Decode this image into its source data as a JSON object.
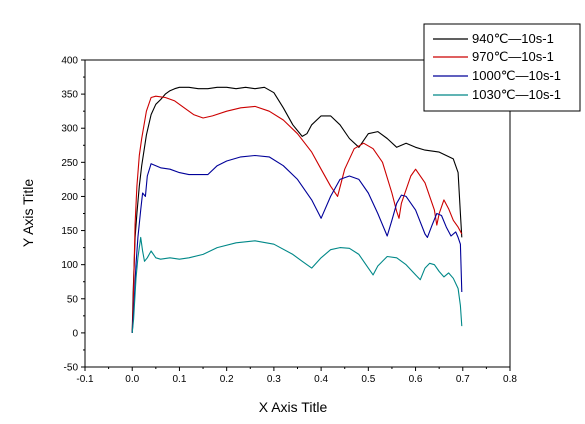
{
  "chart_data": {
    "type": "line",
    "xlabel": "X Axis Title",
    "ylabel": "Y Axis Title",
    "xlim": [
      -0.1,
      0.8
    ],
    "ylim": [
      -50,
      400
    ],
    "xticks": [
      -0.1,
      0.0,
      0.1,
      0.2,
      0.3,
      0.4,
      0.5,
      0.6,
      0.7,
      0.8
    ],
    "xtick_labels": [
      "-0.1",
      "0.0",
      "0.1",
      "0.2",
      "0.3",
      "0.4",
      "0.5",
      "0.6",
      "0.7",
      "0.8"
    ],
    "yticks": [
      -50,
      0,
      50,
      100,
      150,
      200,
      250,
      300,
      350,
      400
    ],
    "ytick_labels": [
      "-50",
      "0",
      "50",
      "100",
      "150",
      "200",
      "250",
      "300",
      "350",
      "400"
    ],
    "grid": false,
    "legend_position": "top-right",
    "series": [
      {
        "name": "940℃—10s-1",
        "color": "#000000",
        "points": [
          [
            0.0,
            0
          ],
          [
            0.002,
            60
          ],
          [
            0.006,
            140
          ],
          [
            0.01,
            175
          ],
          [
            0.015,
            215
          ],
          [
            0.02,
            245
          ],
          [
            0.03,
            290
          ],
          [
            0.04,
            320
          ],
          [
            0.05,
            335
          ],
          [
            0.06,
            342
          ],
          [
            0.07,
            350
          ],
          [
            0.08,
            355
          ],
          [
            0.09,
            358
          ],
          [
            0.1,
            360
          ],
          [
            0.12,
            360
          ],
          [
            0.14,
            358
          ],
          [
            0.16,
            358
          ],
          [
            0.18,
            360
          ],
          [
            0.2,
            360
          ],
          [
            0.22,
            358
          ],
          [
            0.24,
            360
          ],
          [
            0.26,
            358
          ],
          [
            0.28,
            360
          ],
          [
            0.3,
            352
          ],
          [
            0.32,
            330
          ],
          [
            0.34,
            305
          ],
          [
            0.36,
            288
          ],
          [
            0.37,
            292
          ],
          [
            0.38,
            305
          ],
          [
            0.4,
            318
          ],
          [
            0.42,
            318
          ],
          [
            0.44,
            305
          ],
          [
            0.46,
            285
          ],
          [
            0.48,
            272
          ],
          [
            0.5,
            292
          ],
          [
            0.52,
            295
          ],
          [
            0.54,
            285
          ],
          [
            0.56,
            272
          ],
          [
            0.58,
            278
          ],
          [
            0.6,
            272
          ],
          [
            0.62,
            268
          ],
          [
            0.65,
            265
          ],
          [
            0.68,
            255
          ],
          [
            0.69,
            235
          ],
          [
            0.695,
            175
          ],
          [
            0.698,
            140
          ]
        ]
      },
      {
        "name": "970℃—10s-1",
        "color": "#cc0000",
        "points": [
          [
            0.0,
            0
          ],
          [
            0.002,
            40
          ],
          [
            0.006,
            160
          ],
          [
            0.01,
            215
          ],
          [
            0.015,
            260
          ],
          [
            0.02,
            285
          ],
          [
            0.03,
            325
          ],
          [
            0.04,
            345
          ],
          [
            0.05,
            347
          ],
          [
            0.07,
            345
          ],
          [
            0.09,
            340
          ],
          [
            0.11,
            330
          ],
          [
            0.13,
            320
          ],
          [
            0.15,
            315
          ],
          [
            0.17,
            318
          ],
          [
            0.2,
            325
          ],
          [
            0.23,
            330
          ],
          [
            0.26,
            332
          ],
          [
            0.29,
            325
          ],
          [
            0.32,
            312
          ],
          [
            0.35,
            292
          ],
          [
            0.38,
            265
          ],
          [
            0.4,
            240
          ],
          [
            0.42,
            215
          ],
          [
            0.435,
            200
          ],
          [
            0.45,
            240
          ],
          [
            0.47,
            270
          ],
          [
            0.49,
            278
          ],
          [
            0.51,
            270
          ],
          [
            0.53,
            250
          ],
          [
            0.55,
            205
          ],
          [
            0.56,
            178
          ],
          [
            0.565,
            168
          ],
          [
            0.57,
            190
          ],
          [
            0.59,
            230
          ],
          [
            0.6,
            240
          ],
          [
            0.62,
            220
          ],
          [
            0.64,
            180
          ],
          [
            0.645,
            158
          ],
          [
            0.65,
            175
          ],
          [
            0.66,
            195
          ],
          [
            0.67,
            182
          ],
          [
            0.68,
            165
          ],
          [
            0.69,
            155
          ],
          [
            0.698,
            145
          ]
        ]
      },
      {
        "name": "1000℃—10s-1",
        "color": "#000099",
        "points": [
          [
            0.0,
            0
          ],
          [
            0.003,
            30
          ],
          [
            0.008,
            100
          ],
          [
            0.012,
            140
          ],
          [
            0.018,
            180
          ],
          [
            0.022,
            205
          ],
          [
            0.028,
            200
          ],
          [
            0.032,
            230
          ],
          [
            0.04,
            248
          ],
          [
            0.06,
            242
          ],
          [
            0.08,
            240
          ],
          [
            0.1,
            235
          ],
          [
            0.12,
            232
          ],
          [
            0.14,
            232
          ],
          [
            0.16,
            232
          ],
          [
            0.18,
            245
          ],
          [
            0.2,
            252
          ],
          [
            0.23,
            258
          ],
          [
            0.26,
            260
          ],
          [
            0.29,
            258
          ],
          [
            0.32,
            245
          ],
          [
            0.35,
            225
          ],
          [
            0.38,
            195
          ],
          [
            0.4,
            168
          ],
          [
            0.42,
            200
          ],
          [
            0.44,
            225
          ],
          [
            0.46,
            230
          ],
          [
            0.48,
            225
          ],
          [
            0.5,
            205
          ],
          [
            0.52,
            175
          ],
          [
            0.54,
            142
          ],
          [
            0.55,
            165
          ],
          [
            0.56,
            190
          ],
          [
            0.57,
            202
          ],
          [
            0.58,
            200
          ],
          [
            0.6,
            180
          ],
          [
            0.62,
            145
          ],
          [
            0.625,
            140
          ],
          [
            0.635,
            158
          ],
          [
            0.645,
            175
          ],
          [
            0.655,
            172
          ],
          [
            0.665,
            155
          ],
          [
            0.675,
            142
          ],
          [
            0.685,
            148
          ],
          [
            0.69,
            140
          ],
          [
            0.695,
            130
          ],
          [
            0.698,
            60
          ]
        ]
      },
      {
        "name": "1030℃—10s-1",
        "color": "#008888",
        "points": [
          [
            0.0,
            0
          ],
          [
            0.003,
            20
          ],
          [
            0.008,
            80
          ],
          [
            0.012,
            110
          ],
          [
            0.018,
            140
          ],
          [
            0.022,
            120
          ],
          [
            0.026,
            105
          ],
          [
            0.032,
            110
          ],
          [
            0.04,
            120
          ],
          [
            0.05,
            110
          ],
          [
            0.06,
            108
          ],
          [
            0.08,
            110
          ],
          [
            0.1,
            108
          ],
          [
            0.12,
            110
          ],
          [
            0.15,
            115
          ],
          [
            0.18,
            125
          ],
          [
            0.22,
            132
          ],
          [
            0.26,
            135
          ],
          [
            0.3,
            130
          ],
          [
            0.34,
            115
          ],
          [
            0.36,
            105
          ],
          [
            0.38,
            95
          ],
          [
            0.4,
            110
          ],
          [
            0.42,
            122
          ],
          [
            0.44,
            125
          ],
          [
            0.46,
            124
          ],
          [
            0.48,
            115
          ],
          [
            0.5,
            95
          ],
          [
            0.51,
            85
          ],
          [
            0.52,
            98
          ],
          [
            0.54,
            112
          ],
          [
            0.56,
            110
          ],
          [
            0.58,
            100
          ],
          [
            0.6,
            85
          ],
          [
            0.61,
            78
          ],
          [
            0.62,
            95
          ],
          [
            0.63,
            102
          ],
          [
            0.64,
            100
          ],
          [
            0.65,
            90
          ],
          [
            0.66,
            82
          ],
          [
            0.67,
            88
          ],
          [
            0.68,
            80
          ],
          [
            0.69,
            65
          ],
          [
            0.695,
            40
          ],
          [
            0.698,
            10
          ]
        ]
      }
    ]
  }
}
